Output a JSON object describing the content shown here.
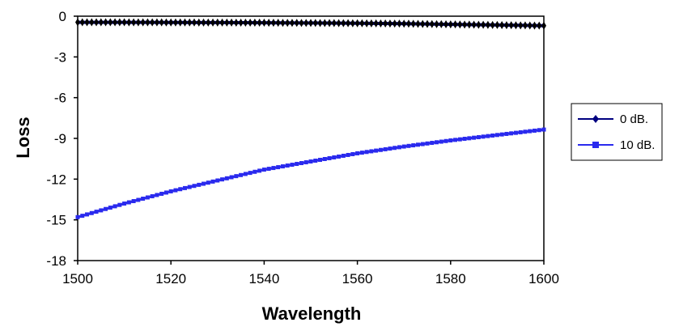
{
  "chart_data": {
    "type": "line",
    "title": "",
    "xlabel": "Wavelength",
    "ylabel": "Loss",
    "xlim": [
      1500,
      1600
    ],
    "ylim": [
      -18,
      0
    ],
    "x_ticks": [
      1500,
      1520,
      1540,
      1560,
      1580,
      1600
    ],
    "y_ticks": [
      0,
      -3,
      -6,
      -9,
      -12,
      -15,
      -18
    ],
    "grid": false,
    "legend_position": "right",
    "series": [
      {
        "name": "0 dB.",
        "color": "#000080",
        "marker": "diamond",
        "x": [
          1500,
          1510,
          1520,
          1530,
          1540,
          1550,
          1560,
          1570,
          1580,
          1590,
          1600
        ],
        "y": [
          -0.45,
          -0.45,
          -0.46,
          -0.47,
          -0.48,
          -0.5,
          -0.52,
          -0.55,
          -0.6,
          -0.65,
          -0.7
        ]
      },
      {
        "name": "10 dB.",
        "color": "#2a2aee",
        "marker": "square",
        "x": [
          1500,
          1510,
          1520,
          1530,
          1540,
          1550,
          1560,
          1570,
          1580,
          1590,
          1600
        ],
        "y": [
          -14.8,
          -13.8,
          -12.9,
          -12.1,
          -11.3,
          -10.7,
          -10.1,
          -9.6,
          -9.15,
          -8.75,
          -8.35
        ]
      }
    ]
  }
}
